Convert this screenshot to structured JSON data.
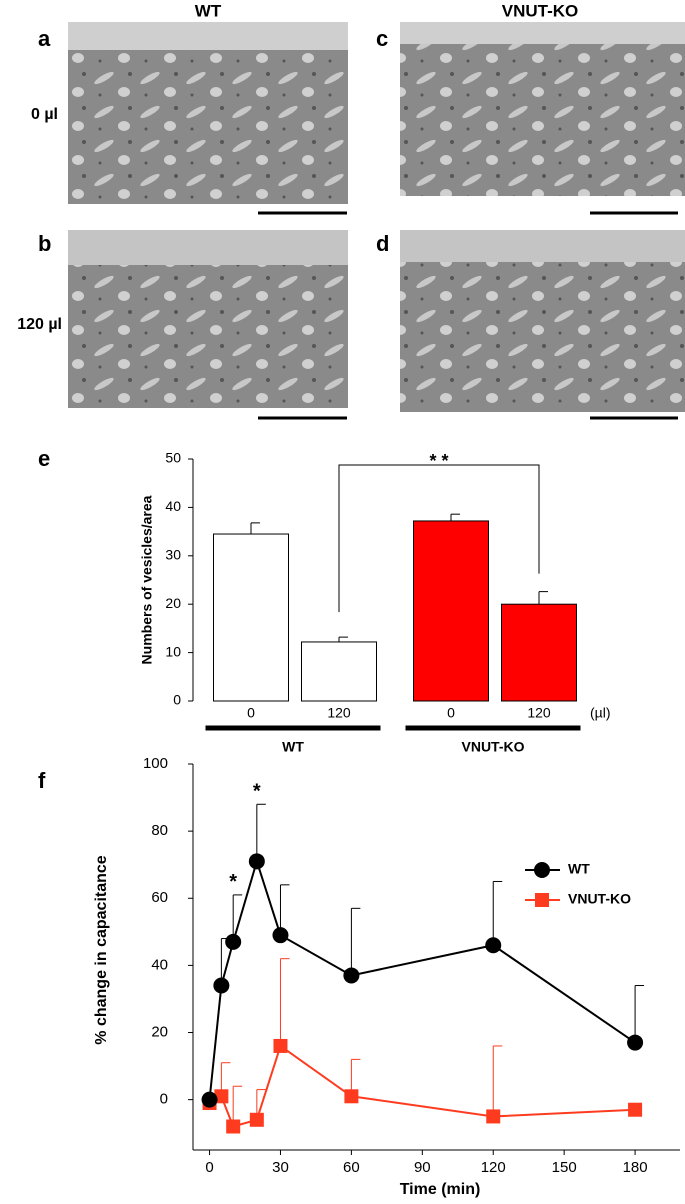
{
  "micrographs": {
    "columns": [
      "WT",
      "VNUT-KO"
    ],
    "rows": [
      "0 µl",
      "120 µl"
    ],
    "panels": [
      "a",
      "b",
      "c",
      "d"
    ]
  },
  "chart_data": [
    {
      "type": "bar",
      "panel": "e",
      "y_label": "Numbers of  vesicles/area",
      "categories": [
        "0",
        "120",
        "0",
        "120"
      ],
      "values": [
        34.5,
        12.2,
        37.2,
        20.0
      ],
      "errors": [
        2.3,
        1.0,
        1.4,
        2.6
      ],
      "colors": [
        "#ffffff",
        "#ffffff",
        "#ff0000",
        "#ff0000"
      ],
      "unit": "(µl)",
      "groups": [
        "WT",
        "VNUT-KO"
      ],
      "significance": "* *",
      "ylim": [
        0,
        50
      ],
      "yticks": [
        0,
        10,
        20,
        30,
        40,
        50
      ]
    },
    {
      "type": "line",
      "panel": "f",
      "x_label": "Time (min)",
      "y_label": "% change in capacitance",
      "x": [
        0,
        5,
        10,
        20,
        30,
        60,
        120,
        180
      ],
      "series": [
        {
          "name": "WT",
          "color": "#000000",
          "marker": "circle",
          "values": [
            0,
            34,
            47,
            71,
            49,
            37,
            46,
            17
          ],
          "errors": [
            0,
            14,
            14,
            17,
            15,
            20,
            19,
            17
          ],
          "annotations": [
            null,
            null,
            "*",
            "*",
            null,
            null,
            null,
            null
          ]
        },
        {
          "name": "VNUT-KO",
          "color": "#ff3b1f",
          "marker": "square",
          "values": [
            -1,
            1,
            -8,
            -6,
            16,
            1,
            -5,
            -3
          ],
          "errors": [
            0,
            10,
            12,
            9,
            26,
            11,
            21,
            0
          ]
        }
      ],
      "xlim": [
        -7,
        199
      ],
      "ylim": [
        -15,
        100
      ],
      "xticks": [
        0,
        30,
        60,
        90,
        120,
        150,
        180
      ],
      "yticks": [
        0,
        20,
        40,
        60,
        80,
        100
      ]
    }
  ]
}
